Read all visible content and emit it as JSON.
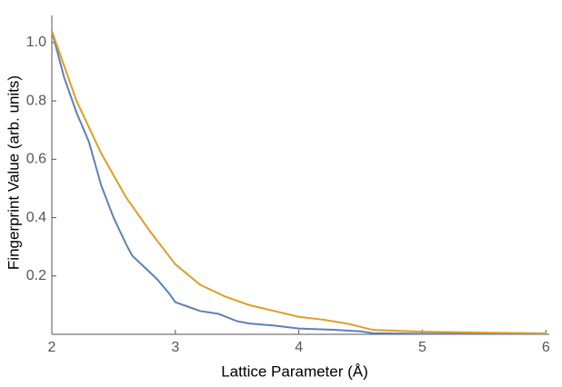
{
  "chart_data": {
    "type": "line",
    "x_label": "Lattice Parameter (Å)",
    "y_label": "Fingerprint Value (arb. units)",
    "xlim": [
      2,
      6.02
    ],
    "ylim": [
      0,
      1.09
    ],
    "xticks": [
      2,
      3,
      4,
      5,
      6
    ],
    "yticks": [
      0.2,
      0.4,
      0.6,
      0.8,
      {
        "value": 1,
        "label": "1.0"
      }
    ],
    "series": [
      {
        "color": "#5e81b5",
        "x": [
          2,
          2.1,
          2.2,
          2.3,
          2.4,
          2.5,
          2.6,
          2.65,
          2.75,
          2.85,
          2.95,
          3.0,
          3.1,
          3.2,
          3.35,
          3.5,
          3.6,
          3.8,
          4.0,
          4.3,
          4.5,
          4.6,
          5,
          6
        ],
        "values": [
          1.04,
          0.88,
          0.76,
          0.66,
          0.51,
          0.4,
          0.31,
          0.27,
          0.23,
          0.19,
          0.14,
          0.11,
          0.095,
          0.08,
          0.07,
          0.045,
          0.037,
          0.03,
          0.02,
          0.015,
          0.01,
          0.004,
          0.002,
          0.001
        ]
      },
      {
        "color": "#e19c24",
        "x": [
          2,
          2.2,
          2.4,
          2.6,
          2.8,
          3.0,
          3.2,
          3.4,
          3.6,
          3.8,
          4.0,
          4.2,
          4.4,
          4.6,
          5,
          5.5,
          6
        ],
        "values": [
          1.04,
          0.8,
          0.62,
          0.47,
          0.35,
          0.24,
          0.17,
          0.13,
          0.1,
          0.08,
          0.06,
          0.05,
          0.036,
          0.015,
          0.009,
          0.006,
          0.003
        ]
      }
    ]
  }
}
